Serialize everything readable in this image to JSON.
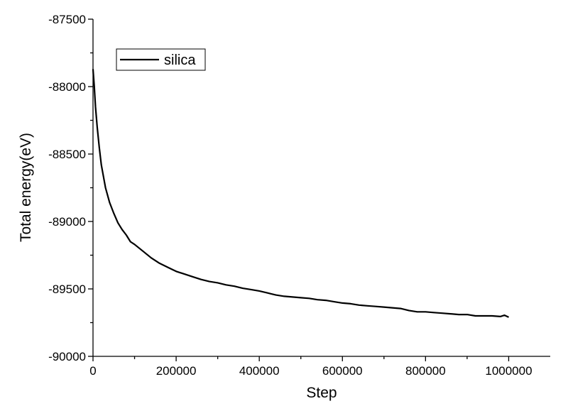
{
  "chart_data": {
    "type": "line",
    "title": "",
    "xlabel": "Step",
    "ylabel": "Total energy(eV)",
    "xlim": [
      0,
      1100000
    ],
    "ylim": [
      -90000,
      -87500
    ],
    "x_ticks": [
      0,
      200000,
      400000,
      600000,
      800000,
      1000000
    ],
    "y_ticks": [
      -87500,
      -88000,
      -88500,
      -89000,
      -89500,
      -90000
    ],
    "x_tick_labels": [
      "0",
      "200000",
      "400000",
      "600000",
      "800000",
      "1000000"
    ],
    "y_tick_labels": [
      "-87500",
      "-88000",
      "-88500",
      "-89000",
      "-89500",
      "-90000"
    ],
    "grid": false,
    "legend_position": "top-left",
    "series": [
      {
        "name": "silica",
        "color": "#000000",
        "x": [
          0,
          3000,
          6000,
          10000,
          15000,
          20000,
          30000,
          40000,
          50000,
          60000,
          70000,
          80000,
          90000,
          100000,
          120000,
          140000,
          160000,
          180000,
          200000,
          220000,
          240000,
          260000,
          280000,
          300000,
          320000,
          340000,
          360000,
          380000,
          400000,
          420000,
          440000,
          460000,
          480000,
          500000,
          520000,
          540000,
          560000,
          580000,
          600000,
          620000,
          640000,
          660000,
          680000,
          700000,
          720000,
          740000,
          760000,
          780000,
          800000,
          820000,
          840000,
          860000,
          880000,
          900000,
          920000,
          940000,
          960000,
          980000,
          990000,
          1000000
        ],
        "y": [
          -87870,
          -88000,
          -88150,
          -88300,
          -88450,
          -88580,
          -88750,
          -88860,
          -88940,
          -89010,
          -89060,
          -89100,
          -89150,
          -89170,
          -89220,
          -89270,
          -89310,
          -89340,
          -89370,
          -89390,
          -89410,
          -89430,
          -89445,
          -89455,
          -89470,
          -89480,
          -89495,
          -89505,
          -89515,
          -89530,
          -89545,
          -89555,
          -89560,
          -89565,
          -89570,
          -89580,
          -89585,
          -89595,
          -89605,
          -89610,
          -89620,
          -89625,
          -89630,
          -89635,
          -89640,
          -89645,
          -89660,
          -89670,
          -89670,
          -89675,
          -89680,
          -89685,
          -89690,
          -89690,
          -89700,
          -89700,
          -89700,
          -89705,
          -89695,
          -89710
        ]
      }
    ]
  }
}
